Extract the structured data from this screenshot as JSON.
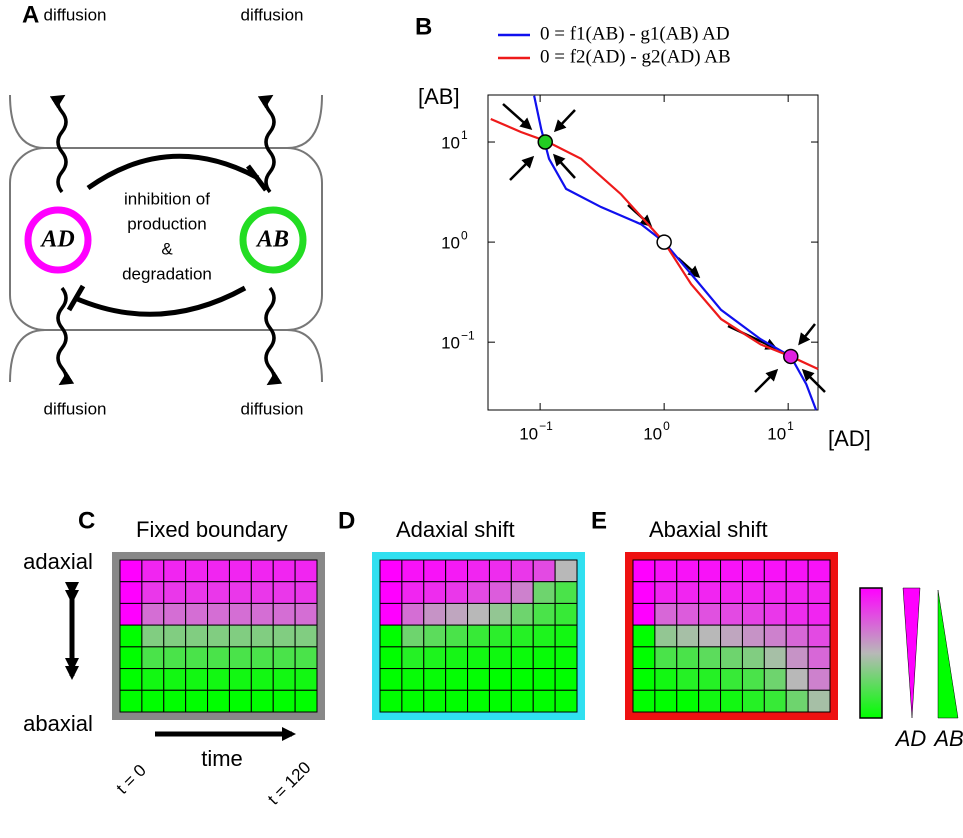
{
  "panel_a": {
    "label": "A",
    "diffusion": [
      "diffusion",
      "diffusion",
      "diffusion",
      "diffusion"
    ],
    "nodes": [
      "AD",
      "AB"
    ],
    "inhibition": [
      "inhibition of",
      "production",
      "&",
      "degradation"
    ]
  },
  "chart_data": {
    "type": "line",
    "label": "B",
    "xlabel": "[AD]",
    "ylabel": "[AB]",
    "log": true,
    "xlim": [
      0.038,
      17.4
    ],
    "ylim": [
      0.021,
      29.5
    ],
    "xticks": [
      {
        "value": 0.1,
        "label": "10",
        "exponent": "−1"
      },
      {
        "value": 1,
        "label": "10",
        "exponent": "0"
      },
      {
        "value": 10,
        "label": "10",
        "exponent": "1"
      }
    ],
    "yticks": [
      {
        "value": 0.1,
        "label": "10",
        "exponent": "−1"
      },
      {
        "value": 1,
        "label": "10",
        "exponent": "0"
      },
      {
        "value": 10,
        "label": "10",
        "exponent": "1"
      }
    ],
    "series": [
      {
        "name": "0 = f1(AB) - g1(AB) AD",
        "color": "#1010ee",
        "x": [
          0.0895,
          0.102,
          0.118,
          0.162,
          0.31,
          0.65,
          1,
          1.65,
          2.88,
          6.0,
          10.5,
          14,
          16.8
        ],
        "values": [
          29,
          13.5,
          6.8,
          3.4,
          2.24,
          1.51,
          1,
          0.48,
          0.21,
          0.107,
          0.072,
          0.038,
          0.021
        ]
      },
      {
        "name": "0 = f2(AD) - g2(AD) AB",
        "color": "#ee1a1a",
        "x": [
          0.04,
          0.07,
          0.112,
          0.214,
          0.45,
          1,
          1.65,
          2.88,
          6.0,
          10.5,
          17.4
        ],
        "values": [
          17,
          12.6,
          10.2,
          6.8,
          3.0,
          1,
          0.38,
          0.17,
          0.095,
          0.072,
          0.054
        ]
      }
    ],
    "equilibria": [
      {
        "x": 0.11,
        "y": 10,
        "color": "#22cc22"
      },
      {
        "x": 1,
        "y": 1,
        "color": "#ffffff"
      },
      {
        "x": 10.5,
        "y": 0.072,
        "color": "#e020e0"
      }
    ]
  },
  "heatmaps": {
    "colormap": [
      "#ff00ff",
      "#b8b8b8",
      "#00ff00"
    ],
    "panels": [
      {
        "label": "C",
        "title": "Fixed boundary",
        "border_color": "#888888",
        "values": [
          [
            1,
            0.9,
            0.9,
            0.9,
            0.9,
            0.9,
            0.9,
            0.9,
            0.9
          ],
          [
            1,
            0.85,
            0.85,
            0.85,
            0.85,
            0.85,
            0.85,
            0.85,
            0.85
          ],
          [
            1,
            0.7,
            0.7,
            0.7,
            0.7,
            0.7,
            0.7,
            0.7,
            0.7
          ],
          [
            0,
            0.35,
            0.35,
            0.35,
            0.35,
            0.35,
            0.35,
            0.35,
            0.35
          ],
          [
            0,
            0.2,
            0.2,
            0.2,
            0.2,
            0.2,
            0.2,
            0.2,
            0.2
          ],
          [
            0,
            0.05,
            0.05,
            0.05,
            0.05,
            0.05,
            0.05,
            0.05,
            0.05
          ],
          [
            0,
            0,
            0,
            0,
            0,
            0,
            0,
            0,
            0
          ]
        ]
      },
      {
        "label": "D",
        "title": "Adaxial shift",
        "border_color": "#30e0f0",
        "values": [
          [
            1,
            0.95,
            0.95,
            0.93,
            0.9,
            0.88,
            0.85,
            0.8,
            0.5
          ],
          [
            1,
            0.9,
            0.88,
            0.85,
            0.8,
            0.75,
            0.65,
            0.3,
            0.2
          ],
          [
            1,
            0.7,
            0.6,
            0.55,
            0.5,
            0.4,
            0.3,
            0.2,
            0.15
          ],
          [
            0,
            0.3,
            0.25,
            0.2,
            0.15,
            0.12,
            0.1,
            0.08,
            0.05
          ],
          [
            0,
            0.1,
            0.08,
            0.06,
            0.05,
            0.04,
            0.03,
            0.02,
            0.02
          ],
          [
            0,
            0.02,
            0.02,
            0.01,
            0.01,
            0,
            0,
            0,
            0
          ],
          [
            0,
            0,
            0,
            0,
            0,
            0,
            0,
            0,
            0
          ]
        ]
      },
      {
        "label": "E",
        "title": "Abaxial shift",
        "border_color": "#ee1111",
        "values": [
          [
            1,
            0.95,
            0.95,
            0.95,
            0.95,
            0.95,
            0.95,
            0.95,
            0.95
          ],
          [
            1,
            0.9,
            0.9,
            0.9,
            0.9,
            0.9,
            0.9,
            0.9,
            0.9
          ],
          [
            1,
            0.72,
            0.75,
            0.78,
            0.8,
            0.82,
            0.85,
            0.88,
            0.9
          ],
          [
            0,
            0.4,
            0.45,
            0.5,
            0.55,
            0.6,
            0.65,
            0.72,
            0.8
          ],
          [
            0,
            0.2,
            0.2,
            0.25,
            0.3,
            0.35,
            0.45,
            0.6,
            0.72
          ],
          [
            0,
            0.05,
            0.1,
            0.1,
            0.15,
            0.2,
            0.3,
            0.5,
            0.65
          ],
          [
            0,
            0,
            0,
            0.05,
            0.05,
            0.1,
            0.15,
            0.3,
            0.45
          ]
        ]
      }
    ]
  },
  "axis_labels": {
    "top": "adaxial",
    "bottom": "abaxial",
    "time": "time",
    "start": "t = 0",
    "end": "t = 120"
  },
  "legend": {
    "ad": "AD",
    "ab": "AB"
  }
}
